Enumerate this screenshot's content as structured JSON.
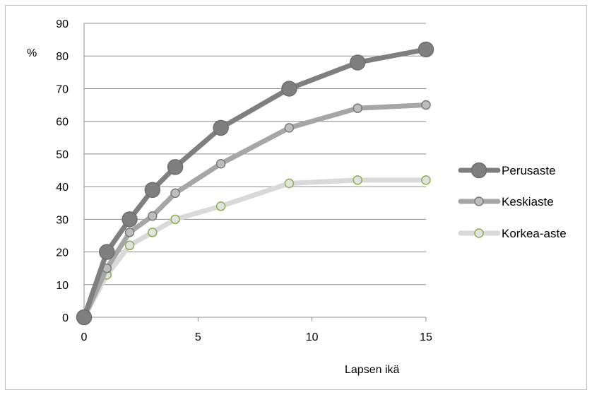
{
  "chart_data": {
    "type": "line",
    "title": "",
    "xlabel": "Lapsen ikä",
    "ylabel": "%",
    "xlim": [
      0,
      15
    ],
    "ylim": [
      0,
      90
    ],
    "x_ticks": [
      "0",
      "5",
      "10",
      "15"
    ],
    "y_ticks": [
      "0",
      "10",
      "20",
      "30",
      "40",
      "50",
      "60",
      "70",
      "80",
      "90"
    ],
    "grid": "horizontal",
    "legend_position": "right",
    "series": [
      {
        "name": "Perusaste",
        "color": "#7f7f7f",
        "marker": "large-filled-circle",
        "x": [
          0,
          1,
          2,
          3,
          4,
          6,
          9,
          12,
          15
        ],
        "y": [
          0,
          20,
          30,
          39,
          46,
          58,
          70,
          78,
          82
        ]
      },
      {
        "name": "Keskiaste",
        "color": "#a6a6a6",
        "marker": "outlined-circle",
        "x": [
          0,
          1,
          2,
          3,
          4,
          6,
          9,
          12,
          15
        ],
        "y": [
          0,
          15,
          26,
          31,
          38,
          47,
          58,
          64,
          65
        ]
      },
      {
        "name": "Korkea-aste",
        "color": "#d9d9d9",
        "marker": "green-ring-circle",
        "x": [
          0,
          1,
          2,
          3,
          4,
          6,
          9,
          12,
          15
        ],
        "y": [
          0,
          13,
          22,
          26,
          30,
          34,
          41,
          42,
          42
        ]
      }
    ]
  }
}
